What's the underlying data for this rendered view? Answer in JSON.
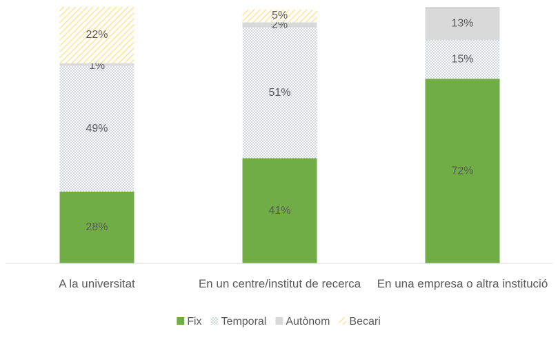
{
  "chart_data": {
    "type": "stacked_bar",
    "categories": [
      "A la universitat",
      "En un centre/institut de recerca",
      "En una empresa o altra institució"
    ],
    "series": [
      {
        "name": "Fix",
        "color": "#70ad47",
        "pattern": "solid",
        "values": [
          28,
          41,
          72
        ],
        "value_labels": [
          "28%",
          "41%",
          "72%"
        ]
      },
      {
        "name": "Temporal",
        "color": "#adb9ca",
        "pattern": "dots",
        "values": [
          49,
          51,
          15
        ],
        "value_labels": [
          "49%",
          "51%",
          "15%"
        ]
      },
      {
        "name": "Autònom",
        "color": "#d9d9d9",
        "pattern": "solid",
        "values": [
          1,
          2,
          13
        ],
        "value_labels": [
          "1%",
          "2%",
          "13%"
        ]
      },
      {
        "name": "Becari",
        "color": "#ffd966",
        "pattern": "diagonal",
        "values": [
          22,
          5,
          0
        ],
        "value_labels": [
          "22%",
          "5%",
          null
        ]
      }
    ],
    "ylim": [
      0,
      100
    ],
    "legend": "bottom"
  }
}
